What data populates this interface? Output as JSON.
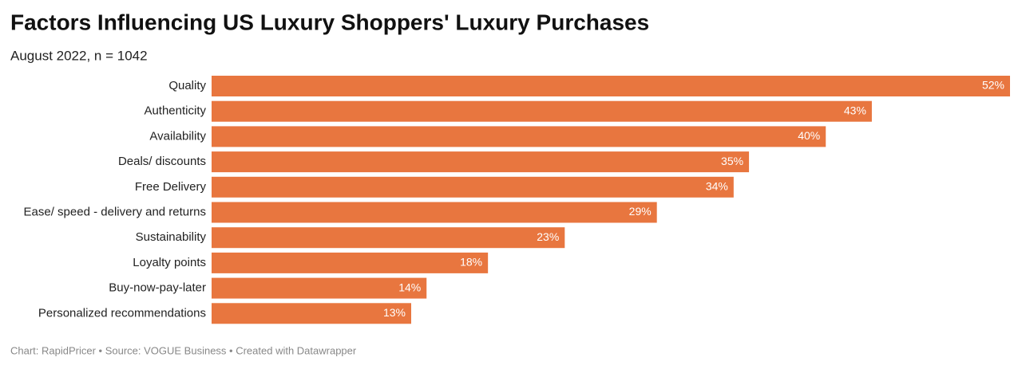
{
  "chart_data": {
    "type": "bar",
    "orientation": "horizontal",
    "title": "Factors Influencing US Luxury Shoppers' Luxury Purchases",
    "subtitle": "August 2022, n = 1042",
    "categories": [
      "Quality",
      "Authenticity",
      "Availability",
      "Deals/ discounts",
      "Free Delivery",
      "Ease/ speed - delivery and returns",
      "Sustainability",
      "Loyalty points",
      "Buy-now-pay-later",
      "Personalized recommendations"
    ],
    "values": [
      52,
      43,
      40,
      35,
      34,
      29,
      23,
      18,
      14,
      13
    ],
    "value_labels": [
      "52%",
      "43%",
      "40%",
      "35%",
      "34%",
      "29%",
      "23%",
      "18%",
      "14%",
      "13%"
    ],
    "color": "#e8763f",
    "footer": "Chart: RapidPricer • Source: VOGUE Business • Created with Datawrapper"
  }
}
